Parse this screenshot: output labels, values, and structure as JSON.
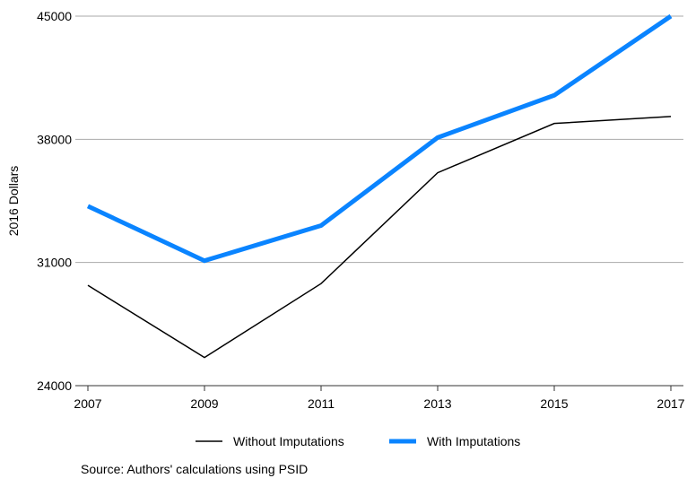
{
  "chart_data": {
    "type": "line",
    "x": [
      2007,
      2009,
      2011,
      2013,
      2015,
      2017
    ],
    "series": [
      {
        "name": "Without Imputations",
        "color": "#000000",
        "width": 1.5,
        "values": [
          29700,
          25600,
          29800,
          36100,
          38900,
          39300
        ]
      },
      {
        "name": "With Imputations",
        "color": "#0a84ff",
        "width": 5,
        "values": [
          34200,
          31100,
          33100,
          38100,
          40500,
          45000
        ]
      }
    ],
    "xlim": [
      2007,
      2017
    ],
    "xticks": [
      2007,
      2009,
      2011,
      2013,
      2015,
      2017
    ],
    "ylim": [
      24000,
      45000
    ],
    "yticks": [
      24000,
      31000,
      38000,
      45000
    ],
    "ylabel": "2016 Dollars",
    "grid": true,
    "legend": "bottom",
    "source": "Source: Authors' calculations using PSID"
  }
}
